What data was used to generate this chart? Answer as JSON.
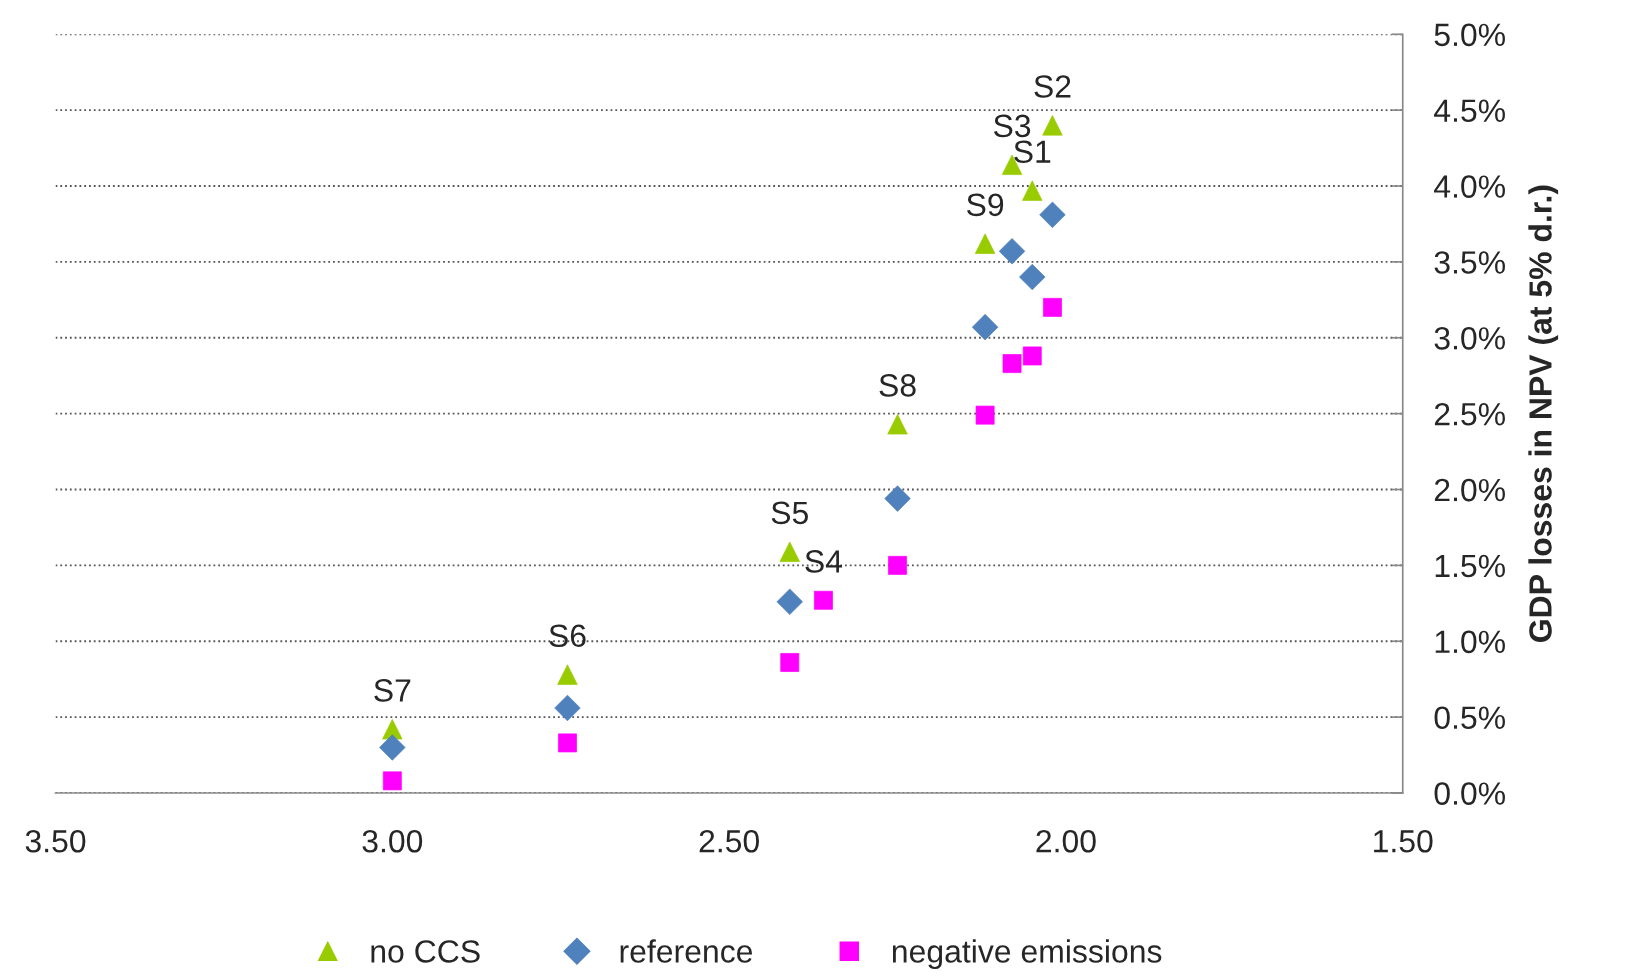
{
  "chart_data": {
    "type": "scatter",
    "ylabel": "GDP losses in NPV (at 5% d.r.)",
    "series": [
      {
        "name": "no CCS",
        "color": "#99cc00",
        "marker": "triangle",
        "x": [
          3.0,
          2.74,
          2.41,
          2.25,
          2.12,
          2.08,
          2.05,
          2.02
        ],
        "values": [
          0.42,
          0.78,
          1.59,
          2.43,
          3.62,
          4.14,
          3.97,
          4.4
        ]
      },
      {
        "name": "reference",
        "color": "#4f81bd",
        "marker": "diamond",
        "x": [
          3.0,
          2.74,
          2.41,
          2.25,
          2.12,
          2.08,
          2.05,
          2.02
        ],
        "values": [
          0.3,
          0.56,
          1.26,
          1.94,
          3.07,
          3.57,
          3.4,
          3.81
        ]
      },
      {
        "name": "negative emissions",
        "color": "#ff00ff",
        "marker": "square",
        "x": [
          3.0,
          2.74,
          2.41,
          2.36,
          2.25,
          2.12,
          2.08,
          2.05,
          2.02
        ],
        "values": [
          0.08,
          0.33,
          0.86,
          1.27,
          1.5,
          2.49,
          2.83,
          2.88,
          3.2
        ]
      }
    ],
    "annotations": [
      {
        "text": "S7",
        "x": 3.0,
        "y": 0.42
      },
      {
        "text": "S6",
        "x": 2.74,
        "y": 0.78
      },
      {
        "text": "S5",
        "x": 2.41,
        "y": 1.59
      },
      {
        "text": "S4",
        "x": 2.36,
        "y": 1.27
      },
      {
        "text": "S8",
        "x": 2.25,
        "y": 2.43
      },
      {
        "text": "S9",
        "x": 2.12,
        "y": 3.62
      },
      {
        "text": "S3",
        "x": 2.08,
        "y": 4.14
      },
      {
        "text": "S1",
        "x": 2.05,
        "y": 3.97
      },
      {
        "text": "S2",
        "x": 2.02,
        "y": 4.4
      }
    ],
    "xlim": [
      3.5,
      1.5
    ],
    "xticks": [
      {
        "value": 3.5,
        "label": "3.50"
      },
      {
        "value": 3.0,
        "label": "3.00"
      },
      {
        "value": 2.5,
        "label": "2.50"
      },
      {
        "value": 2.0,
        "label": "2.00"
      },
      {
        "value": 1.5,
        "label": "1.50"
      }
    ],
    "ylim": [
      0,
      5
    ],
    "yticks": [
      {
        "value": 0,
        "label": "0.0%"
      },
      {
        "value": 0.5,
        "label": "0.5%"
      },
      {
        "value": 1,
        "label": "1.0%"
      },
      {
        "value": 1.5,
        "label": "1.5%"
      },
      {
        "value": 2,
        "label": "2.0%"
      },
      {
        "value": 2.5,
        "label": "2.5%"
      },
      {
        "value": 3,
        "label": "3.0%"
      },
      {
        "value": 3.5,
        "label": "3.5%"
      },
      {
        "value": 4,
        "label": "4.0%"
      },
      {
        "value": 4.5,
        "label": "4.5%"
      },
      {
        "value": 5,
        "label": "5.0%"
      }
    ],
    "grid": "y",
    "legend": "bottom"
  }
}
